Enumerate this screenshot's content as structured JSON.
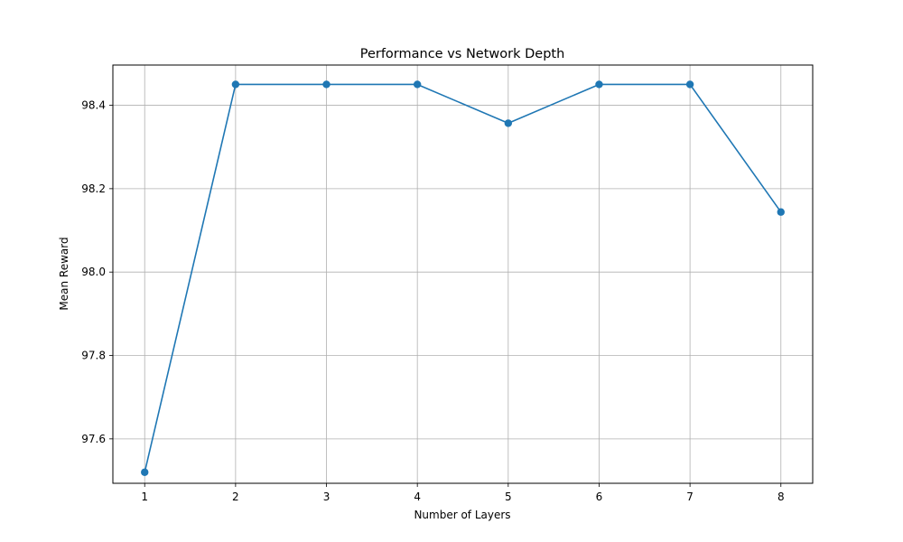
{
  "colors": {
    "series": "#1f77b4",
    "grid": "#b0b0b0",
    "axis": "#000000",
    "background": "#ffffff"
  },
  "chart_data": {
    "type": "line",
    "title": "Performance vs Network Depth",
    "xlabel": "Number of Layers",
    "ylabel": "Mean Reward",
    "x": [
      1,
      2,
      3,
      4,
      5,
      6,
      7,
      8
    ],
    "series": [
      {
        "values": [
          97.52,
          98.45,
          98.45,
          98.45,
          98.357,
          98.45,
          98.45,
          98.144
        ],
        "marker": "circle"
      }
    ],
    "xticks": [
      1,
      2,
      3,
      4,
      5,
      6,
      7,
      8
    ],
    "xtick_labels": [
      "1",
      "2",
      "3",
      "4",
      "5",
      "6",
      "7",
      "8"
    ],
    "yticks": [
      97.6,
      97.8,
      98.0,
      98.2,
      98.4
    ],
    "ytick_labels": [
      "97.6",
      "97.8",
      "98.0",
      "98.2",
      "98.4"
    ],
    "xlim": [
      0.65,
      8.35
    ],
    "ylim": [
      97.4935,
      98.4965
    ],
    "grid": true,
    "legend": "none"
  }
}
